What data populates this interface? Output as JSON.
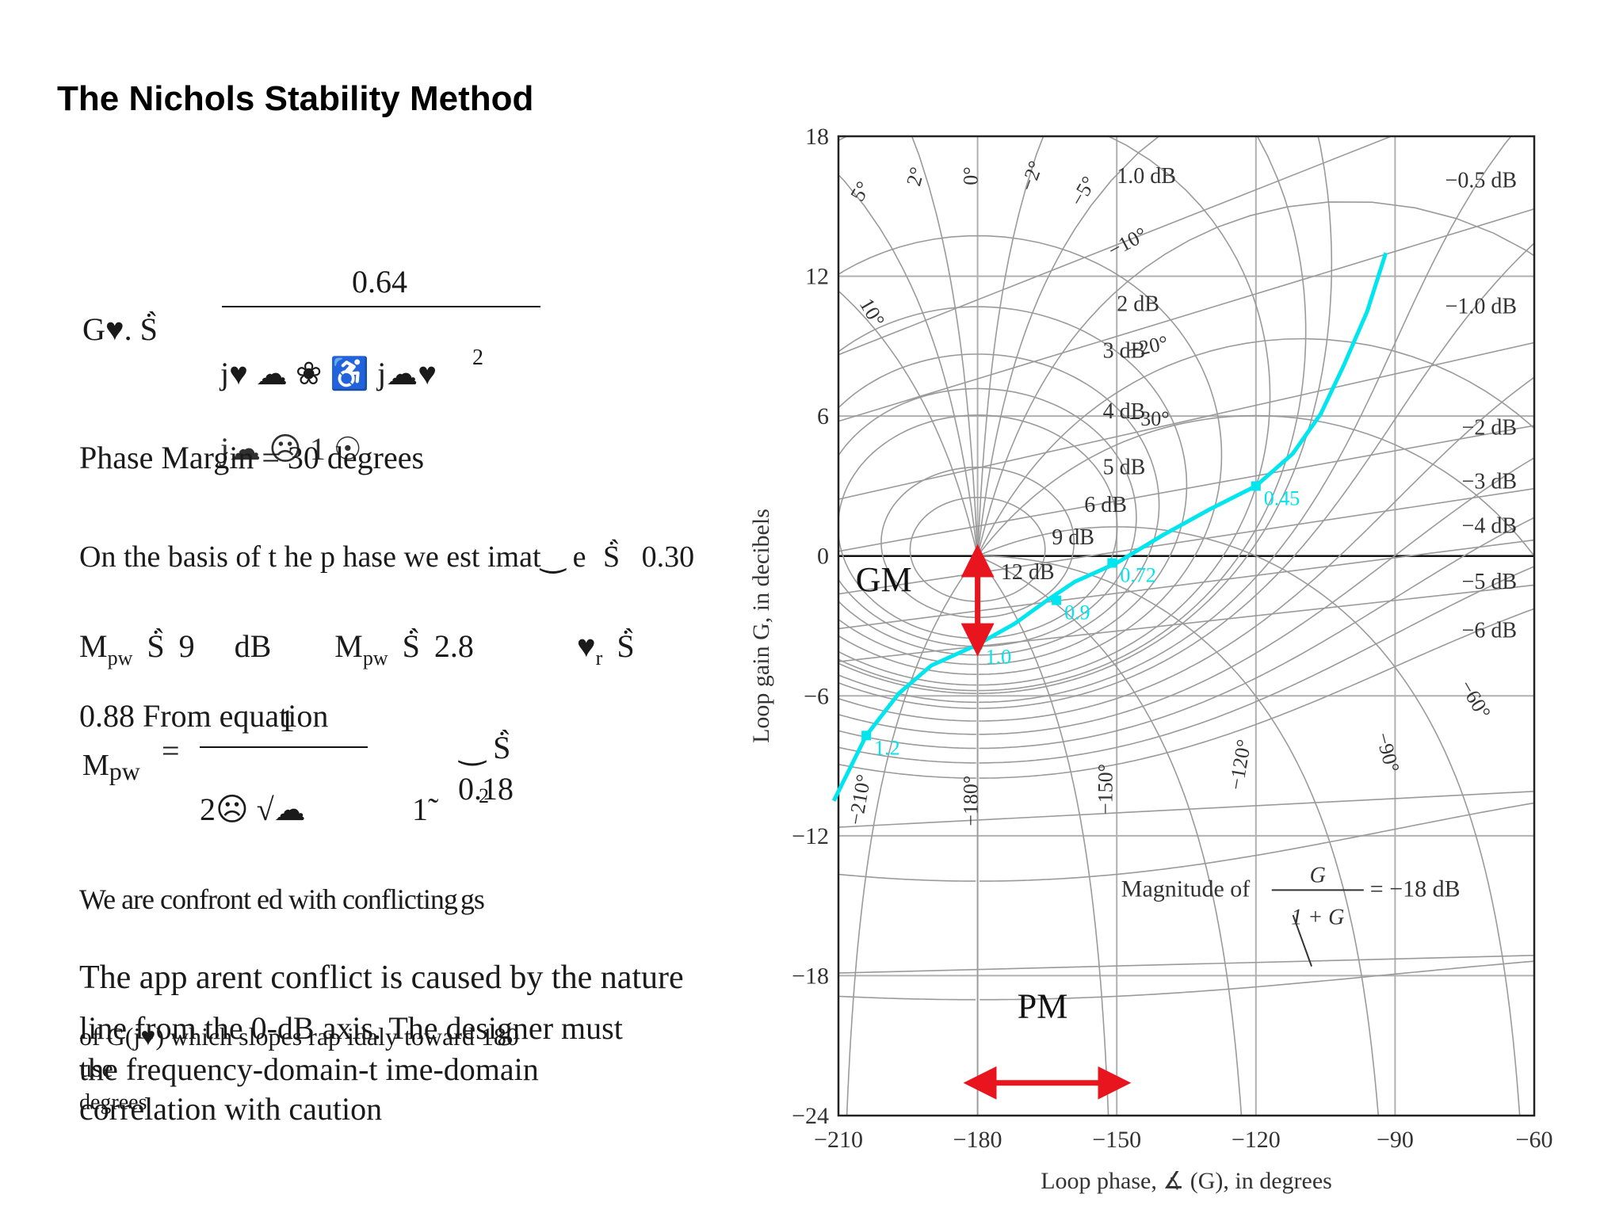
{
  "slide": {
    "title": "The Nichols Stability Method",
    "transfer_function": {
      "lhs": "G♥. Ṡ̀",
      "numerator": "0.64",
      "denominator": "j♥ ☁ ❀ ♿ j☁♥",
      "power": "2",
      "tail": "j☁ ☹ 1 ☉"
    },
    "phase_margin": "Phase Margin = 30 degrees",
    "basis_line": {
      "text": "On the basis of t he p hase we est imat‿ e",
      "symbol": "Ṡ̀",
      "value": "0.30"
    },
    "mpw_line": {
      "a_label": "M",
      "a_sub": "pw",
      "a_sym": "Ṡ̀",
      "a_val": "9",
      "a_unit": "dB",
      "b_label": "M",
      "b_sub": "pw",
      "b_sym": "Ṡ̀",
      "b_val": "2.8",
      "c_label": "♥",
      "c_sub": "r",
      "c_sym": "Ṡ̀"
    },
    "equation_line": {
      "prefix": "0.88  From equation",
      "lhs": "M",
      "lhs_sub": "pw",
      "eq": "=",
      "num": "1",
      "den": "2☹ √☁",
      "tilde": "1̃",
      "result_sym": "‿ Ṡ̀",
      "result": "0.18",
      "two": "2"
    },
    "conflict_line": "We are confront ed with conflicting",
    "conflict_tail": "gs",
    "paragraph": {
      "line1": "The app arent conflict is caused by the nature",
      "line2": "of G(j♥) which slopes rap idaly toward 180",
      "line2_overlap": "line from the 0-dB axis.  The designer must",
      "line3": "the frequency-domain-t ime-domain",
      "line3_overlap": "use",
      "line4": "correlation  with caution",
      "line4_overlap": "degrees"
    }
  },
  "chart_data": {
    "type": "line",
    "title": "",
    "xlabel": "Loop phase, ∡ (G), in degrees",
    "ylabel": "Loop gain G, in decibels",
    "xlim": [
      -210,
      -60
    ],
    "ylim": [
      -24,
      18
    ],
    "x_ticks": [
      "−210",
      "−180",
      "−150",
      "−120",
      "−90",
      "−60"
    ],
    "y_ticks": [
      "18",
      "12",
      "6",
      "0",
      "−6",
      "−12",
      "−18",
      "−24"
    ],
    "grid": true,
    "series": [
      {
        "color": "#00e5ee",
        "x": [
          -211,
          -204,
          -197,
          -190,
          -180,
          -172,
          -165,
          -159,
          -150,
          -140,
          -130,
          -120,
          -112,
          -106,
          -101,
          -96,
          -92
        ],
        "y": [
          -10.5,
          -7.7,
          -5.9,
          -4.7,
          -3.8,
          -2.9,
          -1.9,
          -1.1,
          -0.3,
          0.9,
          2.0,
          3.0,
          4.4,
          6.1,
          8.2,
          10.5,
          13
        ]
      }
    ],
    "frequency_points": [
      {
        "label": "0.45",
        "x": -120,
        "y": 3.0
      },
      {
        "label": "0.72",
        "x": -151,
        "y": -0.3
      },
      {
        "label": "0.9",
        "x": -163,
        "y": -1.9
      },
      {
        "label": "1.0",
        "x": -180,
        "y": -3.8
      },
      {
        "label": "1.2",
        "x": -204,
        "y": -7.7
      }
    ],
    "closed_loop_magnitude_labels": [
      {
        "label": "1.0 dB",
        "x": -150,
        "y": 16
      },
      {
        "label": "−0.5 dB",
        "x": -68,
        "y": 15.8
      },
      {
        "label": "2 dB",
        "x": -150,
        "y": 10.5
      },
      {
        "label": "−1.0 dB",
        "x": -68,
        "y": 10.4
      },
      {
        "label": "3 dB",
        "x": -153,
        "y": 8.5
      },
      {
        "label": "4 dB",
        "x": -153,
        "y": 5.9
      },
      {
        "label": "−2 dB",
        "x": -68,
        "y": 5.2
      },
      {
        "label": "5 dB",
        "x": -153,
        "y": 3.5
      },
      {
        "label": "−3 dB",
        "x": -68,
        "y": 2.9
      },
      {
        "label": "6 dB",
        "x": -157,
        "y": 1.9
      },
      {
        "label": "−4 dB",
        "x": -68,
        "y": 1.0
      },
      {
        "label": "9 dB",
        "x": -164,
        "y": 0.5
      },
      {
        "label": "12 dB",
        "x": -175,
        "y": -1.0
      },
      {
        "label": "−5 dB",
        "x": -68,
        "y": -1.4
      },
      {
        "label": "−6 dB",
        "x": -68,
        "y": -3.5
      }
    ],
    "closed_loop_phase_labels": [
      {
        "label": "5°",
        "x": -204,
        "y": 15.5,
        "rot": -60
      },
      {
        "label": "2°",
        "x": -192,
        "y": 16.2,
        "rot": -75
      },
      {
        "label": "0°",
        "x": -180,
        "y": 16.3,
        "rot": -90
      },
      {
        "label": "−2°",
        "x": -167,
        "y": 16.2,
        "rot": -70
      },
      {
        "label": "−5°",
        "x": -156,
        "y": 15.5,
        "rot": -60
      },
      {
        "label": "−10°",
        "x": -147,
        "y": 13.2,
        "rot": -28
      },
      {
        "label": "10°",
        "x": -204,
        "y": 10.3,
        "rot": 60
      },
      {
        "label": "−20°",
        "x": -143,
        "y": 8.7,
        "rot": -12
      },
      {
        "label": "−30°",
        "x": -143,
        "y": 5.6,
        "rot": 0
      },
      {
        "label": "−60°",
        "x": -74,
        "y": -6.3,
        "rot": 60
      },
      {
        "label": "−90°",
        "x": -93,
        "y": -8.5,
        "rot": 75
      },
      {
        "label": "−120°",
        "x": -122,
        "y": -9.0,
        "rot": -80
      },
      {
        "label": "−150°",
        "x": -151,
        "y": -10.0,
        "rot": -90
      },
      {
        "label": "−180°",
        "x": -180,
        "y": -10.5,
        "rot": -90
      },
      {
        "label": "−210°",
        "x": -204,
        "y": -10.5,
        "rot": -80
      }
    ],
    "annotations": {
      "magnitude_note": "Magnitude of",
      "frac_num": "G",
      "frac_den": "1 + G",
      "frac_eq": "= −18 dB",
      "gm": "GM",
      "pm": "PM",
      "arrow_color": "#e8141e"
    }
  }
}
